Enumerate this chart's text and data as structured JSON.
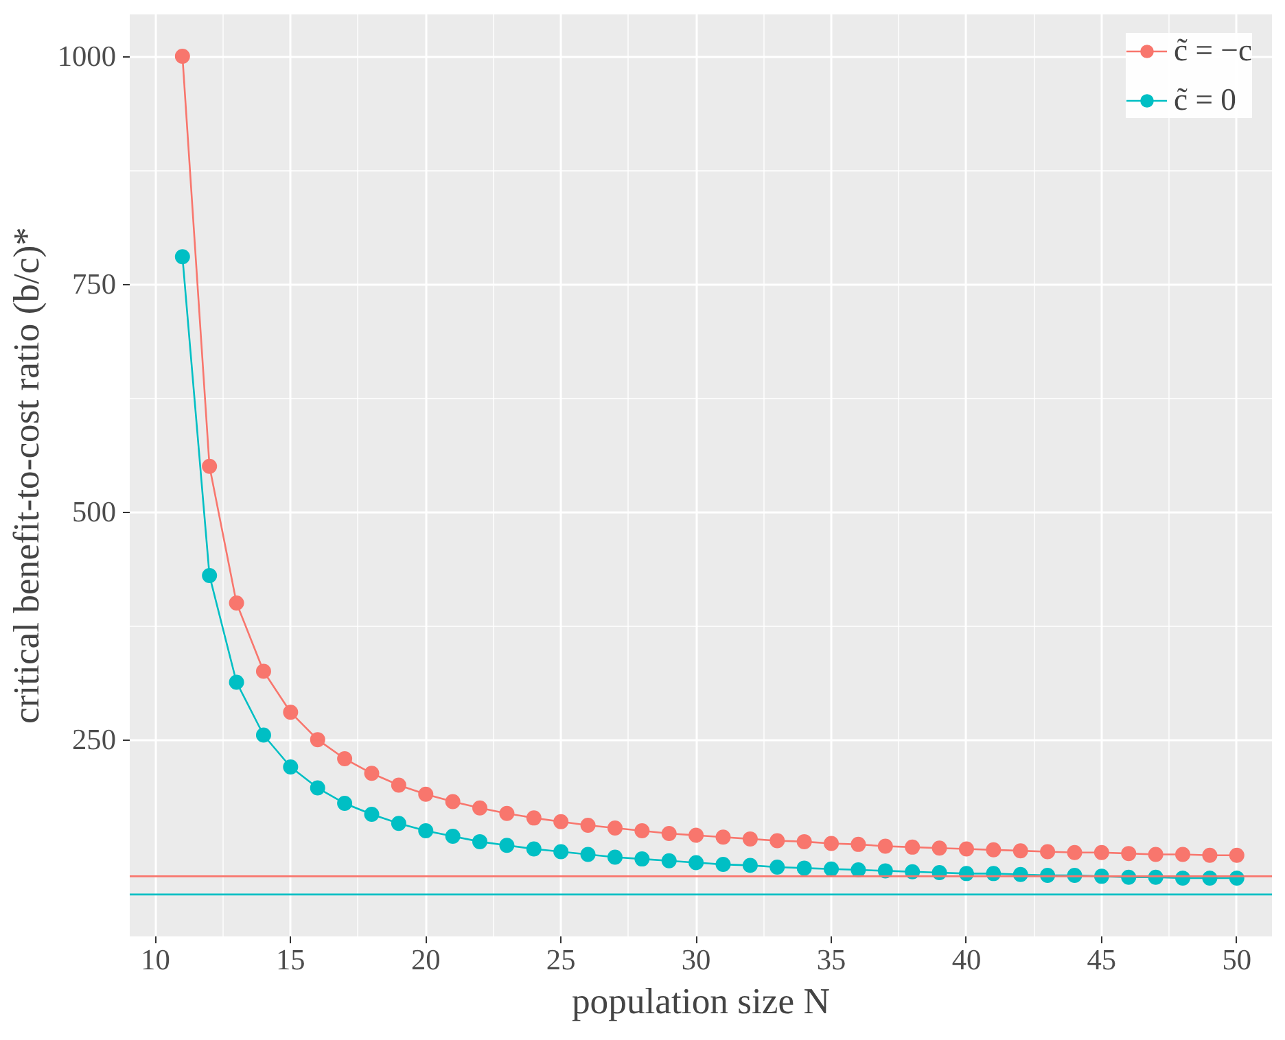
{
  "chart_data": {
    "type": "line",
    "xlabel": "population size N",
    "ylabel": "critical benefit-to-cost ratio (b/c)*",
    "x": [
      11,
      12,
      13,
      14,
      15,
      16,
      17,
      18,
      19,
      20,
      21,
      22,
      23,
      24,
      25,
      26,
      27,
      28,
      29,
      30,
      31,
      32,
      33,
      34,
      35,
      36,
      37,
      38,
      39,
      40,
      41,
      42,
      43,
      44,
      45,
      46,
      47,
      48,
      49,
      50
    ],
    "series": [
      {
        "name": "c̃ = −c",
        "color": "#f8766d",
        "values": [
          1000,
          550,
          400,
          325,
          280,
          250,
          229,
          213,
          200,
          190,
          182,
          175,
          169,
          164,
          160,
          156,
          153,
          150,
          147,
          145,
          143,
          141,
          139,
          138,
          136,
          135,
          133,
          132,
          131,
          130,
          129,
          128,
          127,
          126,
          126,
          125,
          124,
          124,
          123,
          123
        ]
      },
      {
        "name": "c̃ = 0",
        "color": "#00bfc4",
        "values": [
          780,
          430,
          313,
          255,
          220,
          197,
          180,
          168,
          158,
          150,
          144,
          138,
          134,
          130,
          127,
          124,
          121,
          119,
          117,
          115,
          113,
          112,
          110,
          109,
          108,
          107,
          106,
          105,
          104,
          103,
          103,
          102,
          101,
          101,
          100,
          99,
          99,
          98,
          98,
          98
        ]
      }
    ],
    "ref_lines": [
      {
        "axis": "y",
        "value": 100,
        "color": "#f8766d"
      },
      {
        "axis": "y",
        "value": 80,
        "color": "#00bfc4"
      }
    ],
    "xlim": [
      9.05,
      51.3
    ],
    "ylim": [
      34,
      1046
    ],
    "xticks": [
      10,
      15,
      20,
      25,
      30,
      35,
      40,
      45,
      50
    ],
    "yticks": [
      250,
      500,
      750,
      1000
    ],
    "grid": true,
    "legend": "top right",
    "marker": "circle",
    "line_style": "solid"
  }
}
